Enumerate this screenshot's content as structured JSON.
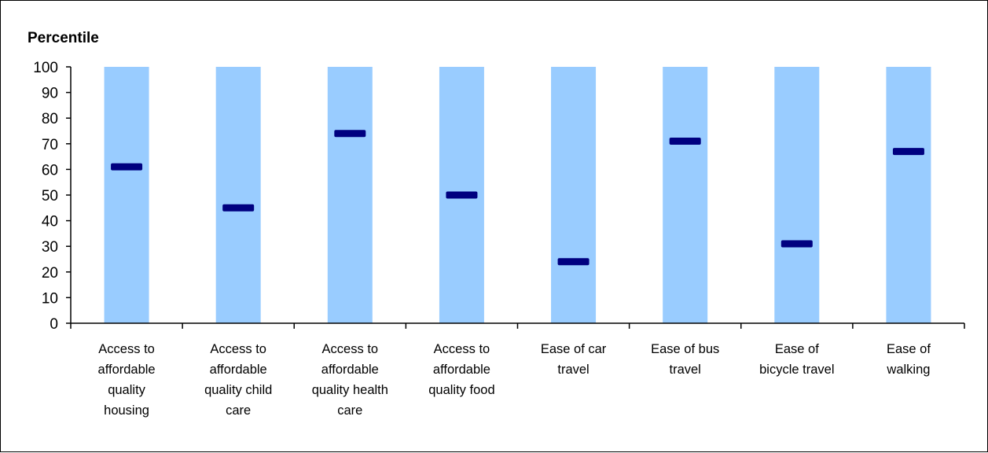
{
  "chart_data": {
    "type": "bar",
    "ylabel": "Percentile",
    "xlabel": "",
    "ylim": [
      0,
      100
    ],
    "yticks": [
      "0",
      "10",
      "20",
      "30",
      "40",
      "50",
      "60",
      "70",
      "80",
      "90",
      "100"
    ],
    "categories": [
      "Access to affordable quality housing",
      "Access to affordable quality child care",
      "Access to affordable quality health care",
      "Access to affordable quality food",
      "Ease of car travel",
      "Ease of bus travel",
      "Ease of bicycle travel",
      "Ease of walking"
    ],
    "category_lines": [
      [
        "Access to",
        "affordable",
        "quality",
        "housing"
      ],
      [
        "Access to",
        "affordable",
        "quality child",
        "care"
      ],
      [
        "Access to",
        "affordable",
        "quality health",
        "care"
      ],
      [
        "Access to",
        "affordable",
        "quality food"
      ],
      [
        "Ease of car",
        "travel"
      ],
      [
        "Ease of bus",
        "travel"
      ],
      [
        "Ease of",
        "bicycle travel"
      ],
      [
        "Ease of",
        "walking"
      ]
    ],
    "range_max": [
      100,
      100,
      100,
      100,
      100,
      100,
      100,
      100
    ],
    "values": [
      61,
      45,
      74,
      50,
      24,
      71,
      31,
      67
    ],
    "colors": {
      "range_bar": "#99ccff",
      "marker": "#000080",
      "axis": "#000000"
    }
  }
}
